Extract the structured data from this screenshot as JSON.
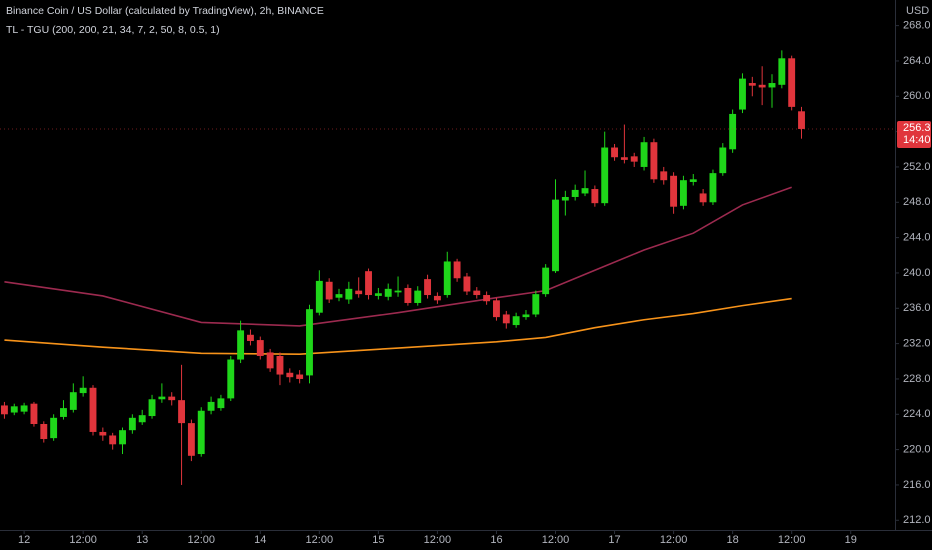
{
  "chart_data": {
    "type": "candlestick",
    "title": "Binance Coin / US Dollar (calculated by TradingView), 2h, BINANCE",
    "indicator": "TL - TGU (200, 200, 21, 34, 7, 2, 50, 8, 0.5, 1)",
    "currency": "USD",
    "up_color": "#1fd61a",
    "down_color": "#e0353c",
    "x": [
      -4,
      -2,
      0,
      2,
      4,
      6,
      8,
      10,
      12,
      14,
      16,
      18,
      20,
      22,
      24,
      26,
      28,
      30,
      32,
      34,
      36,
      38,
      40,
      42,
      44,
      46,
      48,
      50,
      52,
      54,
      56,
      58,
      60,
      62,
      64,
      66,
      68,
      70,
      72,
      74,
      76,
      78,
      80,
      82,
      84,
      86,
      88,
      90,
      92,
      94,
      96,
      98,
      100,
      102,
      104,
      106,
      108,
      110,
      112,
      114,
      116,
      118,
      120,
      122,
      124,
      126,
      128,
      130,
      132,
      134,
      136,
      138,
      140,
      142,
      144,
      146,
      148,
      150,
      152,
      154,
      156,
      158
    ],
    "open": [
      225.0,
      224.2,
      224.3,
      225.2,
      222.9,
      221.3,
      223.7,
      224.5,
      226.4,
      227.0,
      222.0,
      221.6,
      220.6,
      222.2,
      223.1,
      223.8,
      225.7,
      226.0,
      225.6,
      223.0,
      219.5,
      224.4,
      224.7,
      225.8,
      230.2,
      233.0,
      232.4,
      231.0,
      230.6,
      228.7,
      228.5,
      228.4,
      235.5,
      239.0,
      237.2,
      237.0,
      238.0,
      240.2,
      237.4,
      237.3,
      237.8,
      238.3,
      236.6,
      239.3,
      237.4,
      237.5,
      241.3,
      239.6,
      238.0,
      237.5,
      236.9,
      235.3,
      234.1,
      235.0,
      235.3,
      237.6,
      240.2,
      248.2,
      248.6,
      249.0,
      249.5,
      247.9,
      254.2,
      253.1,
      253.2,
      252.0,
      254.8,
      251.5,
      251.0,
      247.6,
      250.3,
      249.0,
      248.0,
      251.3,
      254.0,
      258.5,
      261.5,
      261.3,
      261.0,
      261.3,
      264.3,
      258.3
    ],
    "high": [
      225.4,
      225.2,
      225.3,
      225.4,
      223.2,
      224.0,
      225.6,
      227.5,
      228.3,
      227.3,
      222.5,
      221.9,
      222.5,
      224.0,
      224.5,
      226.2,
      227.5,
      226.5,
      229.6,
      223.4,
      224.8,
      226.0,
      226.2,
      230.6,
      234.6,
      233.6,
      232.8,
      231.4,
      231.0,
      229.2,
      229.0,
      236.4,
      240.3,
      239.4,
      238.2,
      239.0,
      239.5,
      240.5,
      238.3,
      238.8,
      239.6,
      238.7,
      238.5,
      239.8,
      237.8,
      242.4,
      241.6,
      240.0,
      238.4,
      237.9,
      237.2,
      235.7,
      235.5,
      235.8,
      238.0,
      241.0,
      250.6,
      249.3,
      250.0,
      251.6,
      249.9,
      256.0,
      254.6,
      256.8,
      253.6,
      255.4,
      255.2,
      252.0,
      251.4,
      251.0,
      251.2,
      249.5,
      251.7,
      254.7,
      258.5,
      262.6,
      262.2,
      263.4,
      262.5,
      265.2,
      264.6,
      258.8
    ],
    "low": [
      223.5,
      223.9,
      224.0,
      222.6,
      220.8,
      221.0,
      223.4,
      224.2,
      226.0,
      221.6,
      221.0,
      220.0,
      219.5,
      221.8,
      222.8,
      223.5,
      225.3,
      225.0,
      216.0,
      218.7,
      219.2,
      224.0,
      224.4,
      225.5,
      229.8,
      231.8,
      230.2,
      228.8,
      227.3,
      227.6,
      227.5,
      227.5,
      235.2,
      236.6,
      236.8,
      236.5,
      237.2,
      237.0,
      237.0,
      236.9,
      237.3,
      236.3,
      236.3,
      237.1,
      236.5,
      237.2,
      239.0,
      237.5,
      237.1,
      236.4,
      234.6,
      233.7,
      233.8,
      234.7,
      235.0,
      237.3,
      240.0,
      246.5,
      248.2,
      248.7,
      247.5,
      247.6,
      252.7,
      252.4,
      252.0,
      251.6,
      250.2,
      250.0,
      246.7,
      247.2,
      249.9,
      247.6,
      247.7,
      251.0,
      253.6,
      258.1,
      260.0,
      259.0,
      258.7,
      260.9,
      258.4,
      255.2
    ],
    "close": [
      224.0,
      224.9,
      225.0,
      222.9,
      221.2,
      223.6,
      224.7,
      226.5,
      227.0,
      222.0,
      221.6,
      220.6,
      222.2,
      223.6,
      223.9,
      225.7,
      226.0,
      225.6,
      223.0,
      219.3,
      224.4,
      225.4,
      225.8,
      230.2,
      233.5,
      232.3,
      230.6,
      229.2,
      228.5,
      228.2,
      228.0,
      235.9,
      239.1,
      237.0,
      237.6,
      238.2,
      237.6,
      237.5,
      237.7,
      238.2,
      238.0,
      236.6,
      238.0,
      237.5,
      236.9,
      241.3,
      239.4,
      237.9,
      237.5,
      236.8,
      235.0,
      234.3,
      235.1,
      235.3,
      237.6,
      240.6,
      248.3,
      248.6,
      249.4,
      249.6,
      247.9,
      254.2,
      253.1,
      252.8,
      252.6,
      254.8,
      250.6,
      250.5,
      247.5,
      250.5,
      250.6,
      248.0,
      251.3,
      254.2,
      258.0,
      262.0,
      261.2,
      261.0,
      261.5,
      264.3,
      258.8,
      256.3
    ],
    "lines": [
      {
        "color": "#9c2a4f",
        "x": [
          -4,
          16,
          36,
          56,
          76,
          96,
          106,
          116,
          126,
          136,
          146,
          156
        ],
        "values": [
          239.0,
          237.4,
          234.4,
          234.0,
          235.5,
          237.2,
          238.0,
          240.3,
          242.6,
          244.5,
          247.7,
          249.7
        ]
      },
      {
        "color": "#f7931a",
        "x": [
          -4,
          16,
          36,
          56,
          76,
          96,
          106,
          116,
          126,
          136,
          146,
          156
        ],
        "values": [
          232.4,
          231.6,
          230.9,
          230.8,
          231.5,
          232.2,
          232.7,
          233.8,
          234.7,
          235.4,
          236.3,
          237.1
        ]
      }
    ],
    "last_price": 256.3,
    "countdown": "14:40",
    "xlim": [
      -4.9,
      177
    ],
    "ylim": [
      210.9,
      270.9
    ],
    "xticks": [
      {
        "value": 0,
        "label": "12"
      },
      {
        "value": 12,
        "label": "12:00"
      },
      {
        "value": 24,
        "label": "13"
      },
      {
        "value": 36,
        "label": "12:00"
      },
      {
        "value": 48,
        "label": "14"
      },
      {
        "value": 60,
        "label": "12:00"
      },
      {
        "value": 72,
        "label": "15"
      },
      {
        "value": 84,
        "label": "12:00"
      },
      {
        "value": 96,
        "label": "16"
      },
      {
        "value": 108,
        "label": "12:00"
      },
      {
        "value": 120,
        "label": "17"
      },
      {
        "value": 132,
        "label": "12:00"
      },
      {
        "value": 144,
        "label": "18"
      },
      {
        "value": 156,
        "label": "12:00"
      },
      {
        "value": 168,
        "label": "19"
      }
    ],
    "yticks": [
      {
        "value": 268,
        "label": "268.0"
      },
      {
        "value": 264,
        "label": "264.0"
      },
      {
        "value": 260,
        "label": "260.0"
      },
      {
        "value": 256,
        "label": "256.0"
      },
      {
        "value": 252,
        "label": "252.0"
      },
      {
        "value": 248,
        "label": "248.0"
      },
      {
        "value": 244,
        "label": "244.0"
      },
      {
        "value": 240,
        "label": "240.0"
      },
      {
        "value": 236,
        "label": "236.0"
      },
      {
        "value": 232,
        "label": "232.0"
      },
      {
        "value": 228,
        "label": "228.0"
      },
      {
        "value": 224,
        "label": "224.0"
      },
      {
        "value": 220,
        "label": "220.0"
      },
      {
        "value": 216,
        "label": "216.0"
      },
      {
        "value": 212,
        "label": "212.0"
      }
    ]
  }
}
